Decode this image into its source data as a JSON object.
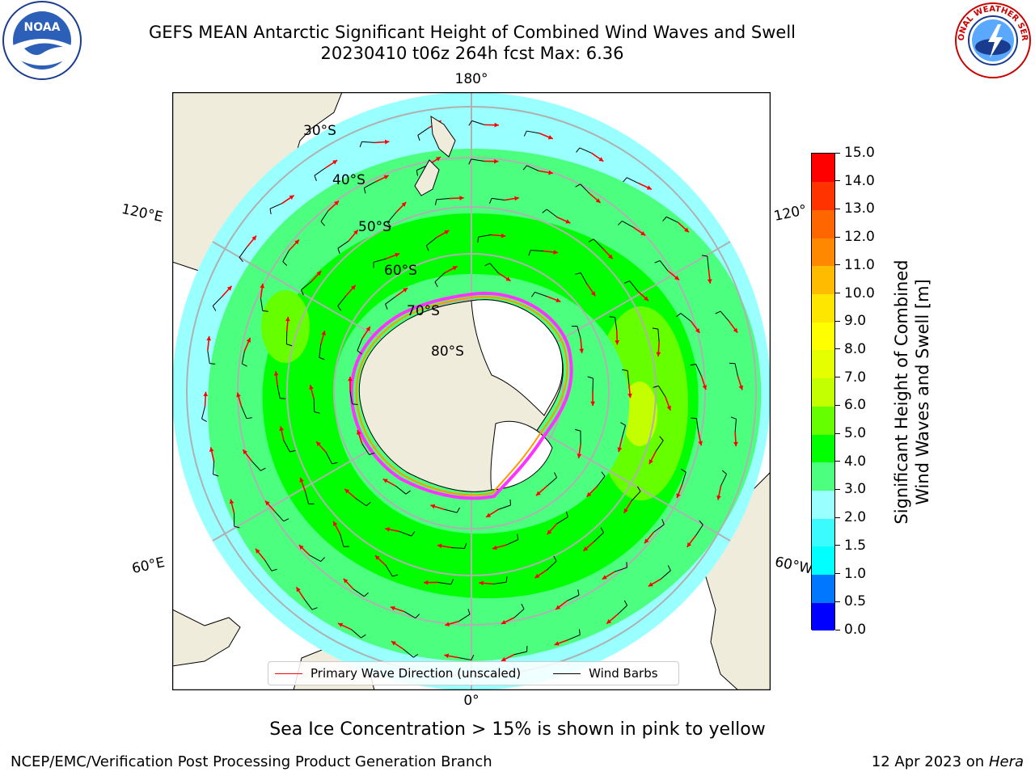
{
  "title": {
    "line1": "GEFS MEAN Antarctic Significant Height of Combined Wind Waves and Swell",
    "line2": "20230410 t06z 264h fcst   Max: 6.36"
  },
  "logos": {
    "left": "NOAA",
    "left_ring": "NATIONAL OCEANIC AND ATMOSPHERIC ADMINISTRATION · U.S. DEPARTMENT OF COMMERCE",
    "right_ring": "NATIONAL WEATHER SERVICE"
  },
  "map": {
    "projection": "south-polar-stereographic",
    "lon_labels": {
      "top": "180°",
      "bottom": "0°",
      "upper_left": "120°E",
      "lower_left": "60°E",
      "upper_right": "120°",
      "lower_right": "60°W"
    },
    "lat_labels": [
      "30°S",
      "40°S",
      "50°S",
      "60°S",
      "70°S",
      "80°S"
    ],
    "colors": {
      "land": "#efecdc",
      "ice_shelf": "#ffffff",
      "ocean_bg": "#ffffff",
      "gridline": "#b0b0b0",
      "wave_arrow": "#ff0000",
      "wind_barb": "#000000",
      "sea_ice_edge": [
        "#ff33ff",
        "#ff9900",
        "#ffff00"
      ]
    }
  },
  "legend": {
    "items": [
      {
        "label": "Primary Wave Direction (unscaled)",
        "color": "#ff0000"
      },
      {
        "label": "Wind Barbs",
        "color": "#000000"
      }
    ]
  },
  "colorbar": {
    "label_line1": "Significant Height of Combined",
    "label_line2": "Wind Waves and Swell [m]",
    "ticks": [
      "0.0",
      "0.5",
      "1.0",
      "1.5",
      "2.0",
      "3.0",
      "4.0",
      "5.0",
      "6.0",
      "7.0",
      "8.0",
      "9.0",
      "10.0",
      "11.0",
      "12.0",
      "13.0",
      "14.0",
      "15.0"
    ],
    "colors": [
      "#0000ff",
      "#0077ff",
      "#00ffff",
      "#3cfbff",
      "#99ffff",
      "#4cff7f",
      "#00ff00",
      "#66ff00",
      "#c4ff00",
      "#e6ff00",
      "#ffff00",
      "#ffe600",
      "#ffbb00",
      "#ff8800",
      "#ff6600",
      "#ff3300",
      "#ff0000"
    ]
  },
  "footer": {
    "note": "Sea Ice Concentration > 15% is shown in pink to yellow",
    "left": "NCEP/EMC/Verification Post Processing Product Generation Branch",
    "right_prefix": "12 Apr 2023 on ",
    "right_host": "Hera"
  }
}
